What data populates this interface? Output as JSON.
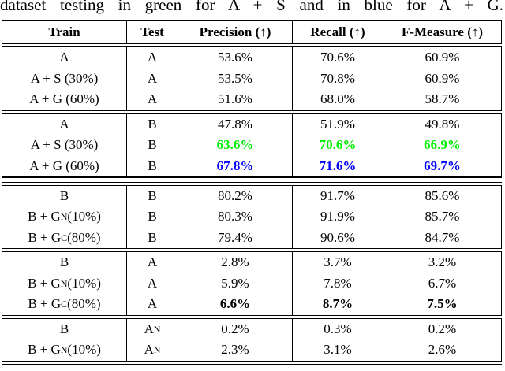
{
  "caption": "dataset testing in green for A + S and in blue for A + G.",
  "colors": {
    "green_highlight": "#00ee00",
    "blue_highlight": "#0000ff",
    "rule": "#000000"
  },
  "table": {
    "headers": [
      "Train",
      "Test",
      "Precision (↑)",
      "Recall (↑)",
      "F-Measure (↑)"
    ],
    "blocks": [
      {
        "rows": [
          {
            "train": "A",
            "test": "A",
            "values": [
              "53.6%",
              "70.6%",
              "60.9%"
            ],
            "style": "normal"
          },
          {
            "train": "A + S (30%)",
            "test": "A",
            "values": [
              "53.5%",
              "70.8%",
              "60.9%"
            ],
            "style": "normal"
          },
          {
            "train": "A + G (60%)",
            "test": "A",
            "values": [
              "51.6%",
              "68.0%",
              "58.7%"
            ],
            "style": "normal"
          }
        ],
        "separator_after": "double"
      },
      {
        "rows": [
          {
            "train": "A",
            "test": "B",
            "values": [
              "47.8%",
              "51.9%",
              "49.8%"
            ],
            "style": "normal"
          },
          {
            "train": "A + S (30%)",
            "test": "B",
            "values": [
              "63.6%",
              "70.6%",
              "66.9%"
            ],
            "style": "green-bold"
          },
          {
            "train": "A + G (60%)",
            "test": "B",
            "values": [
              "67.8%",
              "71.6%",
              "69.7%"
            ],
            "style": "blue-bold"
          }
        ],
        "separator_after": "heavy"
      },
      {
        "rows": [
          {
            "train": "B",
            "test": "B",
            "values": [
              "80.2%",
              "91.7%",
              "85.6%"
            ],
            "style": "normal"
          },
          {
            "train": "B + G_{N} (10%)",
            "test": "B",
            "values": [
              "80.3%",
              "91.9%",
              "85.7%"
            ],
            "style": "normal"
          },
          {
            "train": "B + G_{C} (80%)",
            "test": "B",
            "values": [
              "79.4%",
              "90.6%",
              "84.7%"
            ],
            "style": "normal"
          }
        ],
        "separator_after": "double"
      },
      {
        "rows": [
          {
            "train": "B",
            "test": "A",
            "values": [
              "2.8%",
              "3.7%",
              "3.2%"
            ],
            "style": "normal"
          },
          {
            "train": "B + G_{N} (10%)",
            "test": "A",
            "values": [
              "5.9%",
              "7.8%",
              "6.7%"
            ],
            "style": "normal"
          },
          {
            "train": "B + G_{C} (80%)",
            "test": "A",
            "values": [
              "6.6%",
              "8.7%",
              "7.5%"
            ],
            "style": "bold"
          }
        ],
        "separator_after": "double"
      },
      {
        "rows": [
          {
            "train": "B",
            "test": "A_{N}",
            "values": [
              "0.2%",
              "0.3%",
              "0.2%"
            ],
            "style": "normal"
          },
          {
            "train": "B + G_{N} (10%)",
            "test": "A_{N}",
            "values": [
              "2.3%",
              "3.1%",
              "2.6%"
            ],
            "style": "normal"
          }
        ],
        "separator_after": "double"
      }
    ]
  }
}
